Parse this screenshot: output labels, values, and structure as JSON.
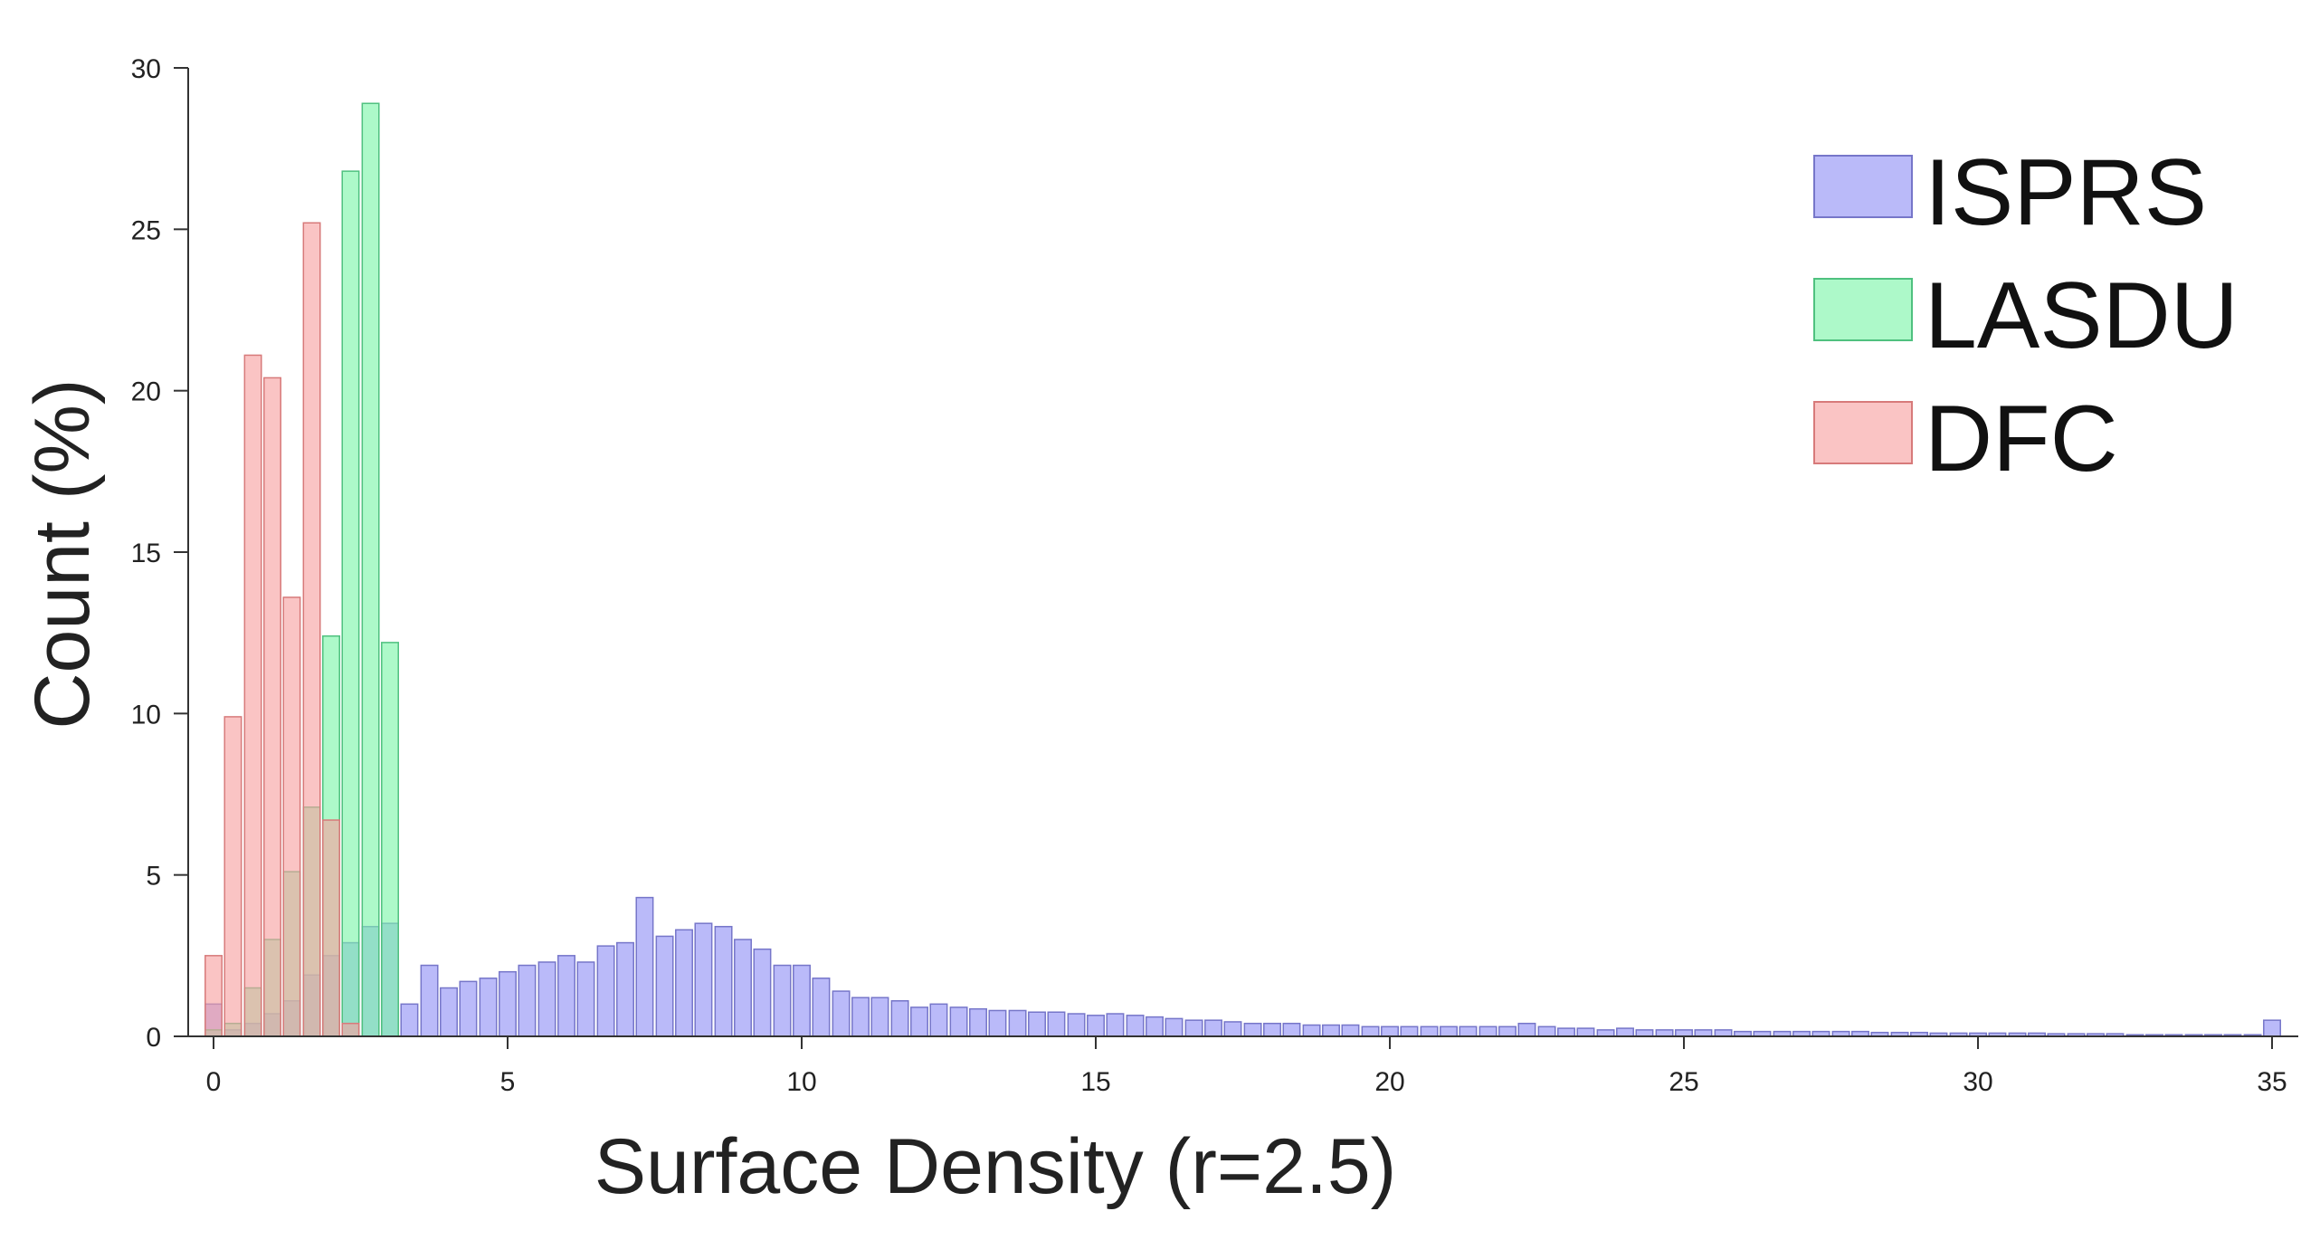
{
  "chart_data": {
    "type": "bar",
    "xlabel": "Surface Density (r=2.5)",
    "ylabel": "Count (%)",
    "xlim": [
      -0.6,
      35.4
    ],
    "ylim": [
      0,
      30
    ],
    "xticks": [
      0,
      5,
      10,
      15,
      20,
      25,
      30,
      35
    ],
    "yticks": [
      0,
      5,
      10,
      15,
      20,
      25,
      30
    ],
    "bin_width": 0.33,
    "grid": false,
    "legend_position": "top-right",
    "series": [
      {
        "name": "ISPRS",
        "color": "#8f8ff5",
        "stroke": "#7676c9",
        "points": [
          [
            0.0,
            1.0
          ],
          [
            0.33,
            0.2
          ],
          [
            0.67,
            0.4
          ],
          [
            1.0,
            0.7
          ],
          [
            1.33,
            1.1
          ],
          [
            1.67,
            1.9
          ],
          [
            2.0,
            2.5
          ],
          [
            2.33,
            2.9
          ],
          [
            2.67,
            3.4
          ],
          [
            3.0,
            3.5
          ],
          [
            3.33,
            1.0
          ],
          [
            3.67,
            2.2
          ],
          [
            4.0,
            1.5
          ],
          [
            4.33,
            1.7
          ],
          [
            4.67,
            1.8
          ],
          [
            5.0,
            2.0
          ],
          [
            5.33,
            2.2
          ],
          [
            5.67,
            2.3
          ],
          [
            6.0,
            2.5
          ],
          [
            6.33,
            2.3
          ],
          [
            6.67,
            2.8
          ],
          [
            7.0,
            2.9
          ],
          [
            7.33,
            4.3
          ],
          [
            7.67,
            3.1
          ],
          [
            8.0,
            3.3
          ],
          [
            8.33,
            3.5
          ],
          [
            8.67,
            3.4
          ],
          [
            9.0,
            3.0
          ],
          [
            9.33,
            2.7
          ],
          [
            9.67,
            2.2
          ],
          [
            10.0,
            2.2
          ],
          [
            10.33,
            1.8
          ],
          [
            10.67,
            1.4
          ],
          [
            11.0,
            1.2
          ],
          [
            11.33,
            1.2
          ],
          [
            11.67,
            1.1
          ],
          [
            12.0,
            0.9
          ],
          [
            12.33,
            1.0
          ],
          [
            12.67,
            0.9
          ],
          [
            13.0,
            0.85
          ],
          [
            13.33,
            0.8
          ],
          [
            13.67,
            0.8
          ],
          [
            14.0,
            0.75
          ],
          [
            14.33,
            0.75
          ],
          [
            14.67,
            0.7
          ],
          [
            15.0,
            0.65
          ],
          [
            15.33,
            0.7
          ],
          [
            15.67,
            0.65
          ],
          [
            16.0,
            0.6
          ],
          [
            16.33,
            0.55
          ],
          [
            16.67,
            0.5
          ],
          [
            17.0,
            0.5
          ],
          [
            17.33,
            0.45
          ],
          [
            17.67,
            0.4
          ],
          [
            18.0,
            0.4
          ],
          [
            18.33,
            0.4
          ],
          [
            18.67,
            0.35
          ],
          [
            19.0,
            0.35
          ],
          [
            19.33,
            0.35
          ],
          [
            19.67,
            0.3
          ],
          [
            20.0,
            0.3
          ],
          [
            20.33,
            0.3
          ],
          [
            20.67,
            0.3
          ],
          [
            21.0,
            0.3
          ],
          [
            21.33,
            0.3
          ],
          [
            21.67,
            0.3
          ],
          [
            22.0,
            0.3
          ],
          [
            22.33,
            0.4
          ],
          [
            22.67,
            0.3
          ],
          [
            23.0,
            0.25
          ],
          [
            23.33,
            0.25
          ],
          [
            23.67,
            0.2
          ],
          [
            24.0,
            0.25
          ],
          [
            24.33,
            0.2
          ],
          [
            24.67,
            0.2
          ],
          [
            25.0,
            0.2
          ],
          [
            25.33,
            0.2
          ],
          [
            25.67,
            0.2
          ],
          [
            26.0,
            0.15
          ],
          [
            26.33,
            0.15
          ],
          [
            26.67,
            0.15
          ],
          [
            27.0,
            0.15
          ],
          [
            27.33,
            0.15
          ],
          [
            27.67,
            0.15
          ],
          [
            28.0,
            0.15
          ],
          [
            28.33,
            0.12
          ],
          [
            28.67,
            0.12
          ],
          [
            29.0,
            0.12
          ],
          [
            29.33,
            0.1
          ],
          [
            29.67,
            0.1
          ],
          [
            30.0,
            0.1
          ],
          [
            30.33,
            0.1
          ],
          [
            30.67,
            0.1
          ],
          [
            31.0,
            0.1
          ],
          [
            31.33,
            0.08
          ],
          [
            31.67,
            0.08
          ],
          [
            32.0,
            0.08
          ],
          [
            32.33,
            0.08
          ],
          [
            32.67,
            0.05
          ],
          [
            33.0,
            0.05
          ],
          [
            33.33,
            0.05
          ],
          [
            33.67,
            0.05
          ],
          [
            34.0,
            0.05
          ],
          [
            34.33,
            0.05
          ],
          [
            34.67,
            0.05
          ],
          [
            35.0,
            0.5
          ]
        ]
      },
      {
        "name": "LASDU",
        "color": "#7af5a8",
        "stroke": "#4fc17f",
        "points": [
          [
            0.0,
            0.2
          ],
          [
            0.33,
            0.4
          ],
          [
            0.67,
            1.5
          ],
          [
            1.0,
            3.0
          ],
          [
            1.33,
            5.1
          ],
          [
            1.67,
            7.1
          ],
          [
            2.0,
            12.4
          ],
          [
            2.33,
            26.8
          ],
          [
            2.67,
            28.9
          ],
          [
            3.0,
            12.2
          ]
        ]
      },
      {
        "name": "DFC",
        "color": "#f7a0a0",
        "stroke": "#d77a7a",
        "points": [
          [
            0.0,
            2.5
          ],
          [
            0.33,
            9.9
          ],
          [
            0.67,
            21.1
          ],
          [
            1.0,
            20.4
          ],
          [
            1.33,
            13.6
          ],
          [
            1.67,
            25.2
          ],
          [
            2.0,
            6.7
          ],
          [
            2.33,
            0.4
          ]
        ]
      }
    ]
  }
}
